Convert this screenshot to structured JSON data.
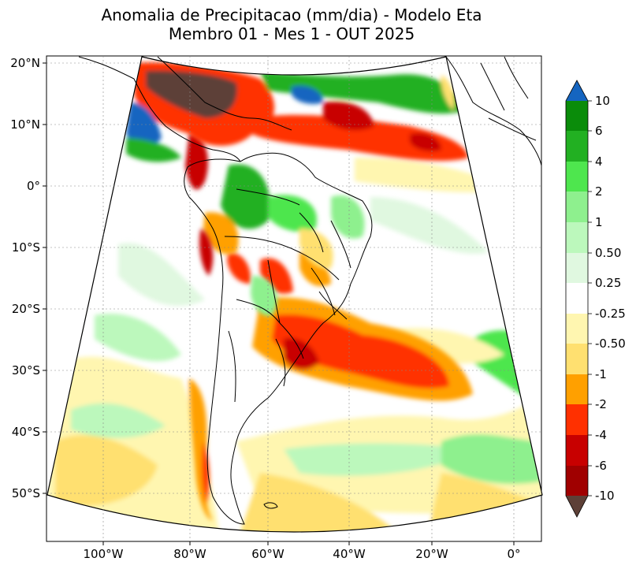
{
  "title": {
    "line1": "Anomalia de Precipitacao (mm/dia) - Modelo Eta",
    "line2": "Membro 01 - Mes 1 - OUT 2025"
  },
  "map": {
    "lat_ticks": [
      "20°N",
      "10°N",
      "0°",
      "10°S",
      "20°S",
      "30°S",
      "40°S",
      "50°S"
    ],
    "lon_ticks": [
      "100°W",
      "80°W",
      "60°W",
      "40°W",
      "20°W",
      "0°"
    ]
  },
  "colorbar": {
    "labels": [
      "10",
      "6",
      "4",
      "2",
      "1",
      "0.50",
      "0.25",
      "-0.25",
      "-0.50",
      "-1",
      "-2",
      "-4",
      "-6",
      "-10"
    ],
    "colors": {
      "over": "#1565c0",
      "c6_10": "#0a8c0a",
      "c4_6": "#22b022",
      "c2_4": "#4ee64e",
      "c1_2": "#8ef08e",
      "c05_1": "#bcf8bc",
      "c025_05": "#e0f8e0",
      "neutral": "#ffffff",
      "cm025_m05": "#fff6b0",
      "cm05_m1": "#ffe070",
      "cm1_m2": "#ffa000",
      "cm2_m4": "#ff3000",
      "cm4_m6": "#c80000",
      "cm6_m10": "#a00000",
      "under": "#5d4037"
    }
  }
}
